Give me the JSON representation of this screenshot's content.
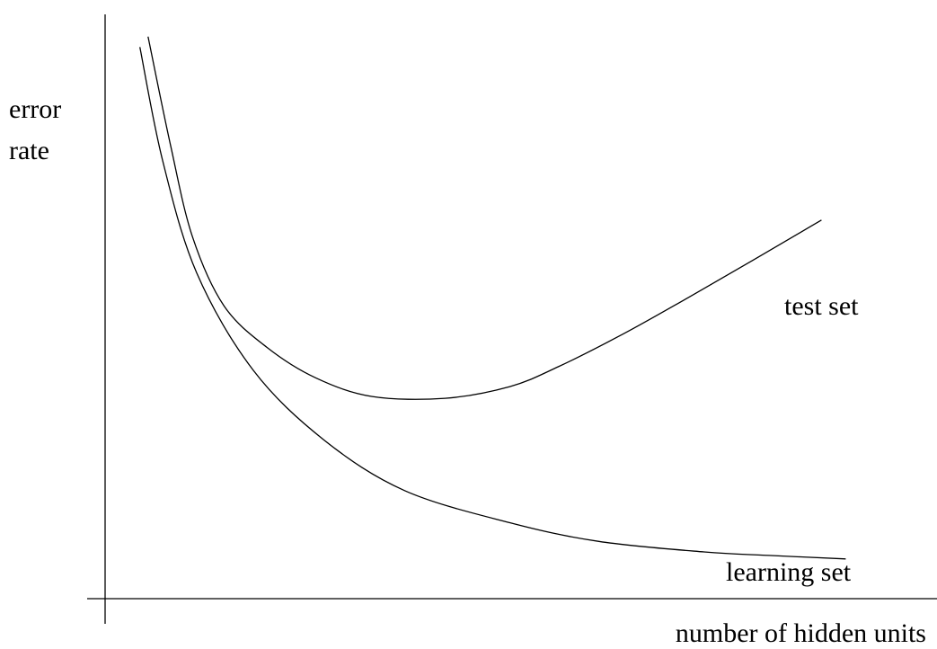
{
  "chart_data": {
    "type": "line",
    "title": "",
    "xlabel": "number of hidden units",
    "ylabel_lines": [
      "error",
      "rate"
    ],
    "grid": false,
    "legend": "none",
    "ticks": "none",
    "x_range": [
      0,
      100
    ],
    "y_range": [
      0,
      100
    ],
    "series": [
      {
        "name": "test set",
        "color": "#000000",
        "points": [
          [
            5.3,
            96.2
          ],
          [
            8.1,
            77.5
          ],
          [
            10.8,
            61.9
          ],
          [
            14.7,
            50.1
          ],
          [
            20.0,
            43.0
          ],
          [
            26.0,
            37.8
          ],
          [
            33.0,
            34.6
          ],
          [
            42.0,
            34.3
          ],
          [
            50.0,
            36.3
          ],
          [
            56.0,
            39.7
          ],
          [
            64.0,
            45.3
          ],
          [
            72.0,
            51.5
          ],
          [
            80.0,
            57.9
          ],
          [
            88.5,
            64.8
          ]
        ]
      },
      {
        "name": "learning set",
        "color": "#000000",
        "points": [
          [
            4.3,
            94.4
          ],
          [
            7.1,
            75.0
          ],
          [
            11.3,
            55.8
          ],
          [
            18.3,
            39.1
          ],
          [
            27.0,
            27.2
          ],
          [
            37.0,
            18.5
          ],
          [
            50.0,
            13.0
          ],
          [
            61.0,
            9.8
          ],
          [
            74.0,
            8.0
          ],
          [
            82.0,
            7.4
          ],
          [
            91.5,
            6.8
          ]
        ]
      }
    ]
  }
}
